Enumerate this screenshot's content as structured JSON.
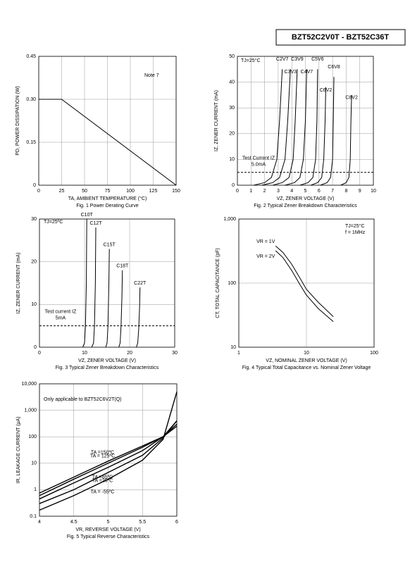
{
  "header": {
    "title": "BZT52C2V0T - BZT52C36T"
  },
  "chart_data": [
    {
      "type": "line",
      "caption": "Fig. 1  Power Derating Curve",
      "xlabel": "TA, AMBIENT TEMPERATURE (°C)",
      "ylabel": "PD, POWER DISSIPATION (W)",
      "xlim": [
        0,
        150
      ],
      "xticks": [
        0,
        25,
        50,
        75,
        100,
        125,
        150
      ],
      "ylim": [
        0,
        0.45
      ],
      "yticks": [
        0,
        0.15,
        {
          "value": 0.3,
          "label": "0.30"
        },
        0.45
      ],
      "grid": true,
      "annotations": [
        "Note 7"
      ],
      "series": [
        {
          "x": [
            0,
            25,
            150
          ],
          "values": [
            0.3,
            0.3,
            0
          ],
          "color": "#000000"
        }
      ]
    },
    {
      "type": "line",
      "caption": "Fig. 2  Typical Zener Breakdown Characteristics",
      "xlabel": "VZ, ZENER VOLTAGE (V)",
      "ylabel": "IZ, ZENER CURRENT (mA)",
      "xlim": [
        0,
        10
      ],
      "xticks": [
        0,
        1,
        2,
        3,
        4,
        5,
        6,
        7,
        8,
        9,
        10
      ],
      "ylim": [
        0,
        50
      ],
      "yticks": [
        0,
        10,
        20,
        30,
        40,
        50
      ],
      "grid": true,
      "annotations": [
        "TJ=25°C"
      ],
      "hline": {
        "value": 5,
        "labels": [
          "Test Current IZ",
          "5.0mA"
        ]
      },
      "series": [
        {
          "name": "C2V7",
          "color": "#000000",
          "x": [
            1.2,
            2.0,
            2.5,
            2.9,
            3.1,
            3.3
          ],
          "values": [
            0,
            1,
            3,
            10,
            25,
            45
          ]
        },
        {
          "name": "C3V3",
          "color": "#000000",
          "x": [
            1.8,
            2.6,
            3.1,
            3.5,
            3.7,
            3.9
          ],
          "values": [
            0,
            1,
            3,
            10,
            25,
            45
          ]
        },
        {
          "name": "C3V9",
          "color": "#000000",
          "x": [
            2.6,
            3.3,
            3.8,
            4.1,
            4.25,
            4.4
          ],
          "values": [
            0,
            1,
            3,
            10,
            25,
            45
          ]
        },
        {
          "name": "C4V7",
          "color": "#000000",
          "x": [
            3.5,
            4.2,
            4.6,
            4.85,
            5.0,
            5.1
          ],
          "values": [
            0,
            1,
            3,
            10,
            25,
            45
          ]
        },
        {
          "name": "C5V6",
          "color": "#000000",
          "x": [
            4.6,
            5.2,
            5.55,
            5.75,
            5.85,
            5.9
          ],
          "values": [
            0,
            1,
            3,
            10,
            25,
            45
          ]
        },
        {
          "name": "C6V2",
          "color": "#000000",
          "x": [
            5.4,
            5.9,
            6.2,
            6.35,
            6.45,
            6.5
          ],
          "values": [
            0,
            1,
            3,
            10,
            25,
            38
          ]
        },
        {
          "name": "C6V8",
          "color": "#000000",
          "x": [
            6.1,
            6.6,
            6.85,
            7.0,
            7.05,
            7.1
          ],
          "values": [
            0,
            1,
            3,
            10,
            25,
            42
          ]
        },
        {
          "name": "C8V2",
          "color": "#000000",
          "x": [
            7.6,
            8.0,
            8.2,
            8.3,
            8.35,
            8.4
          ],
          "values": [
            0,
            1,
            3,
            10,
            25,
            35
          ]
        }
      ]
    },
    {
      "type": "line",
      "caption": "Fig. 3  Typical Zener Breakdown Characteristics",
      "xlabel": "VZ, ZENER VOLTAGE (V)",
      "ylabel": "IZ, ZENER CURRENT (mA)",
      "xlim": [
        0,
        30
      ],
      "xticks": [
        0,
        10,
        20,
        30
      ],
      "ylim": [
        0,
        30
      ],
      "yticks": [
        0,
        10,
        20,
        30
      ],
      "grid": true,
      "annotations": [
        "TJ=25ºC"
      ],
      "hline": {
        "value": 5,
        "labels": [
          "Test current IZ",
          "5mA"
        ]
      },
      "series": [
        {
          "name": "C10T",
          "color": "#000000",
          "x": [
            9.6,
            10.0,
            10.2,
            10.4,
            10.5
          ],
          "values": [
            0,
            1,
            5,
            15,
            30
          ]
        },
        {
          "name": "C12T",
          "color": "#000000",
          "x": [
            11.6,
            12.0,
            12.2,
            12.4,
            12.5
          ],
          "values": [
            0,
            1,
            5,
            15,
            28
          ]
        },
        {
          "name": "C15T",
          "color": "#000000",
          "x": [
            14.7,
            15.0,
            15.2,
            15.4,
            15.5
          ],
          "values": [
            0,
            1,
            5,
            15,
            23
          ]
        },
        {
          "name": "C18T",
          "color": "#000000",
          "x": [
            17.6,
            17.9,
            18.1,
            18.3,
            18.4
          ],
          "values": [
            0,
            1,
            5,
            12,
            18
          ]
        },
        {
          "name": "C22T",
          "color": "#000000",
          "x": [
            21.5,
            21.8,
            22.0,
            22.2,
            22.3
          ],
          "values": [
            0,
            1,
            4,
            9,
            14
          ]
        }
      ]
    },
    {
      "type": "line",
      "caption": "Fig. 4  Typical Total Capacitance vs. Nominal Zener Voltage",
      "xlabel": "VZ, NOMINAL ZENER VOLTAGE (V)",
      "ylabel": "CT, TOTAL CAPACITANCE (pF)",
      "xlog": true,
      "ylog": true,
      "xlim": [
        1,
        100
      ],
      "xticks": [
        1,
        10,
        100
      ],
      "ylim": [
        10,
        1000
      ],
      "yticks": [
        10,
        100,
        {
          "value": 1000,
          "label": "1,000"
        }
      ],
      "grid": true,
      "annotations": [
        "TJ=25°C",
        "f = 1MHz"
      ],
      "series": [
        {
          "name": "VR = 1V",
          "color": "#000000",
          "x": [
            3.5,
            4.5,
            6,
            8,
            10,
            15,
            25
          ],
          "values": [
            380,
            300,
            200,
            120,
            80,
            50,
            30
          ]
        },
        {
          "name": "VR = 2V",
          "color": "#000000",
          "x": [
            3.5,
            4.5,
            6,
            8,
            10,
            15,
            25
          ],
          "values": [
            320,
            250,
            160,
            95,
            65,
            40,
            25
          ]
        }
      ]
    },
    {
      "type": "line",
      "caption": "Fig. 5 Typical Reverse Characteristics",
      "xlabel": "VR, REVERSE VOLTAGE (V)",
      "ylabel": "IR, LEAKAGE CURRENT (µA)",
      "ylog": true,
      "xlim": [
        4,
        6
      ],
      "xticks": [
        4,
        4.5,
        5,
        5.5,
        6
      ],
      "ylim": [
        0.1,
        10000
      ],
      "yticks": [
        0.1,
        1,
        10,
        100,
        {
          "value": 1000,
          "label": "1,000"
        },
        {
          "value": 10000,
          "label": "10,000"
        }
      ],
      "grid": true,
      "annotations": [
        "Only applicable to BZT52C6V2T(Q)"
      ],
      "series": [
        {
          "name": "TA =150ºC",
          "color": "#000000",
          "x": [
            4,
            4.5,
            5,
            5.5,
            5.8,
            6
          ],
          "values": [
            0.75,
            3,
            12,
            45,
            100,
            250
          ]
        },
        {
          "name": "TA = 125ºC",
          "color": "#000000",
          "x": [
            4,
            4.5,
            5,
            5.5,
            5.8,
            6
          ],
          "values": [
            0.6,
            2.5,
            10,
            40,
            100,
            300
          ]
        },
        {
          "name": "TA =85ºC",
          "color": "#000000",
          "x": [
            4,
            4.5,
            5,
            5.5,
            5.8,
            6
          ],
          "values": [
            0.45,
            1.8,
            7,
            30,
            100,
            400
          ]
        },
        {
          "name": "TA =25ºC",
          "color": "#000000",
          "x": [
            4,
            4.5,
            5,
            5.5,
            5.8,
            6
          ],
          "values": [
            0.3,
            1.0,
            4.5,
            20,
            90,
            400
          ]
        },
        {
          "name": "TA = -55ºC",
          "color": "#000000",
          "x": [
            4,
            4.5,
            5,
            5.5,
            5.8,
            6
          ],
          "values": [
            0.17,
            0.6,
            2.5,
            13,
            80,
            5000
          ]
        }
      ]
    }
  ]
}
